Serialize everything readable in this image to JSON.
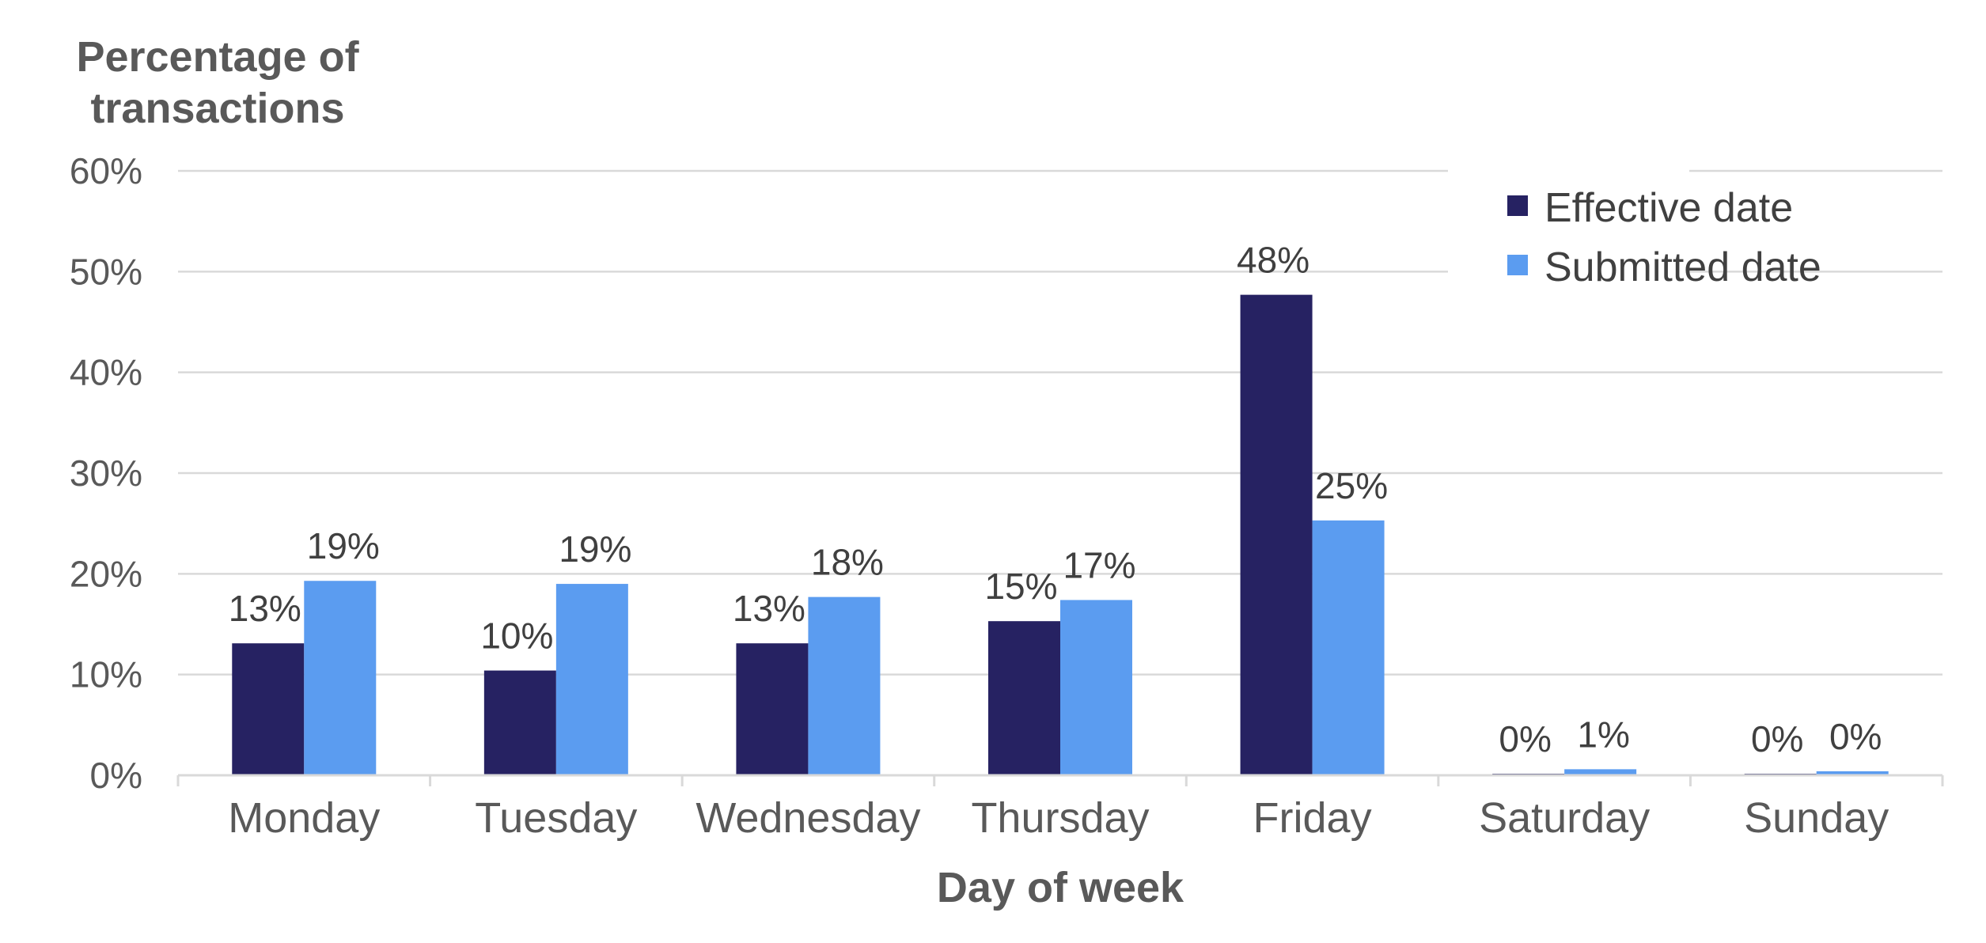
{
  "chart_data": {
    "type": "bar",
    "ylabel_lines": [
      "Percentage of",
      "transactions"
    ],
    "xlabel": "Day of week",
    "categories": [
      "Monday",
      "Tuesday",
      "Wednesday",
      "Thursday",
      "Friday",
      "Saturday",
      "Sunday"
    ],
    "ylim": [
      0,
      60
    ],
    "yticks": [
      "0%",
      "10%",
      "20%",
      "30%",
      "40%",
      "50%",
      "60%"
    ],
    "grid": true,
    "legend_position": "top-right",
    "series": [
      {
        "name": "Effective date",
        "color": "#262262",
        "values": [
          13.1,
          10.4,
          13.1,
          15.3,
          47.7,
          0.1,
          0.1
        ],
        "labels": [
          "13%",
          "10%",
          "13%",
          "15%",
          "48%",
          "0%",
          "0%"
        ]
      },
      {
        "name": "Submitted date",
        "color": "#5b9cf0",
        "values": [
          19.3,
          19.0,
          17.7,
          17.4,
          25.3,
          0.6,
          0.4
        ],
        "labels": [
          "19%",
          "19%",
          "18%",
          "17%",
          "25%",
          "1%",
          "0%"
        ]
      }
    ]
  }
}
